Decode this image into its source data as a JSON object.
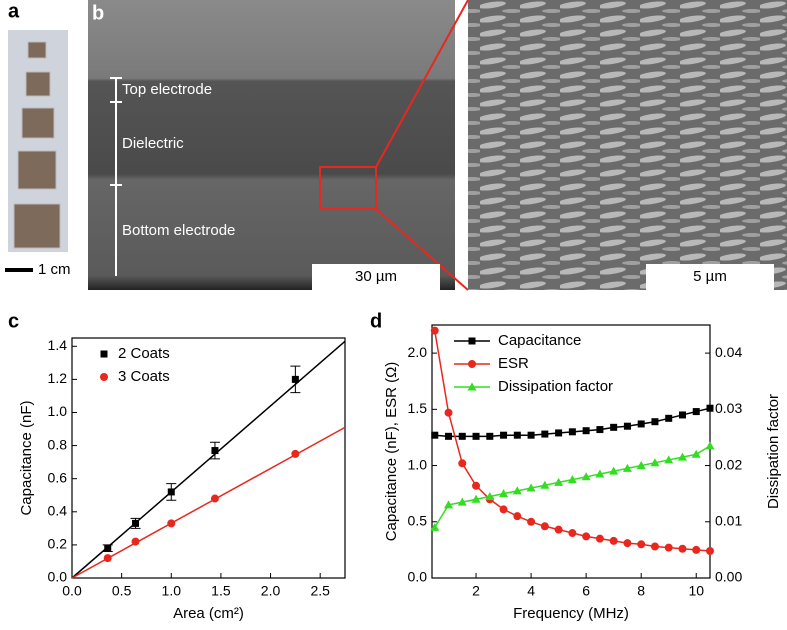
{
  "panel_labels": [
    "a",
    "b",
    "c",
    "d"
  ],
  "images": {
    "a_scale": "1 cm",
    "b_layers": [
      "Top electrode",
      "Dielectric",
      "Bottom electrode"
    ],
    "b_scale": "30 µm",
    "b_zoom_scale": "5 µm"
  },
  "chart_data": [
    {
      "type": "scatter",
      "xlabel": "Area (cm²)",
      "ylabel": "Capacitance (nF)",
      "xlim": [
        0,
        2.75
      ],
      "xticks": [
        {
          "value": 0,
          "label": "0.0"
        },
        0.5,
        {
          "value": 1,
          "label": "1.0"
        },
        1.5,
        {
          "value": 2,
          "label": "2.0"
        },
        2.5
      ],
      "ylim": [
        0,
        1.45
      ],
      "yticks": [
        {
          "value": 0,
          "label": "0.0"
        },
        0.2,
        0.4,
        0.6,
        0.8,
        {
          "value": 1,
          "label": "1.0"
        },
        1.2,
        1.4
      ],
      "x": [
        0.36,
        0.64,
        1.0,
        1.44,
        2.25
      ],
      "legend": "upper left",
      "series": [
        {
          "name": "2 Coats",
          "color": "#000000",
          "marker": "square",
          "values": [
            0.18,
            0.33,
            0.52,
            0.77,
            1.2
          ],
          "errors": [
            0.02,
            0.03,
            0.05,
            0.05,
            0.08
          ],
          "fit": {
            "x": [
              0,
              2.75
            ],
            "values": [
              0,
              1.43
            ]
          }
        },
        {
          "name": "3 Coats",
          "color": "#e8281e",
          "marker": "circle",
          "values": [
            0.12,
            0.22,
            0.33,
            0.48,
            0.75
          ],
          "fit": {
            "x": [
              0,
              2.75
            ],
            "values": [
              0,
              0.91
            ]
          }
        }
      ]
    },
    {
      "type": "line",
      "xlabel": "Frequency (MHz)",
      "ylabel": "Capacitance (nF), ESR (Ω)",
      "y2label": "Dissipation factor",
      "xlim": [
        0.4,
        10.5
      ],
      "xticks": [
        2,
        4,
        6,
        8,
        10
      ],
      "ylim": [
        0,
        2.25
      ],
      "yticks": [
        {
          "value": 0,
          "label": "0.0"
        },
        0.5,
        {
          "value": 1,
          "label": "1.0"
        },
        1.5,
        {
          "value": 2,
          "label": "2.0"
        }
      ],
      "y2lim": [
        0,
        0.045
      ],
      "y2ticks": [
        {
          "value": 0,
          "label": "0.00"
        },
        0.01,
        0.02,
        0.03,
        0.04
      ],
      "x": [
        0.5,
        1,
        1.5,
        2,
        2.5,
        3,
        3.5,
        4,
        4.5,
        5,
        5.5,
        6,
        6.5,
        7,
        7.5,
        8,
        8.5,
        9,
        9.5,
        10,
        10.5
      ],
      "legend": "upper right",
      "series": [
        {
          "name": "Capacitance",
          "color": "#000000",
          "marker": "square",
          "values": [
            1.27,
            1.26,
            1.26,
            1.26,
            1.26,
            1.27,
            1.27,
            1.27,
            1.28,
            1.29,
            1.3,
            1.31,
            1.32,
            1.34,
            1.35,
            1.37,
            1.39,
            1.42,
            1.45,
            1.48,
            1.51
          ]
        },
        {
          "name": "ESR",
          "color": "#e8281e",
          "marker": "circle",
          "values": [
            2.2,
            1.47,
            1.02,
            0.82,
            0.7,
            0.61,
            0.55,
            0.5,
            0.46,
            0.43,
            0.4,
            0.37,
            0.35,
            0.33,
            0.31,
            0.3,
            0.28,
            0.27,
            0.26,
            0.25,
            0.24
          ]
        },
        {
          "name": "Dissipation factor",
          "color": "#33dd22",
          "marker": "triangle",
          "axis": "y2",
          "values": [
            0.009,
            0.013,
            0.0135,
            0.014,
            0.0145,
            0.015,
            0.0155,
            0.016,
            0.0165,
            0.017,
            0.0175,
            0.018,
            0.0185,
            0.019,
            0.0195,
            0.02,
            0.0205,
            0.021,
            0.0215,
            0.022,
            0.0235
          ]
        }
      ]
    }
  ]
}
